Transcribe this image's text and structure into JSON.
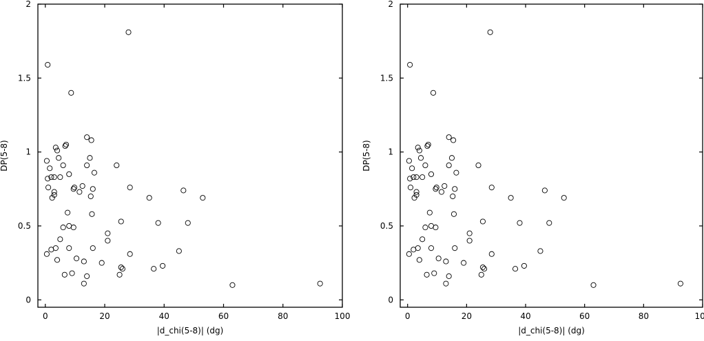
{
  "chart_data": [
    {
      "type": "scatter",
      "xlabel": "|d_chi(5-8)| (dg)",
      "ylabel": "DP(5-8)",
      "xlim": [
        -2.5,
        100
      ],
      "ylim": [
        -0.05,
        2.0
      ],
      "x_ticks": [
        0,
        20,
        40,
        60,
        80,
        100
      ],
      "x_tick_labels": [
        "0",
        "20",
        "40",
        "60",
        "80",
        "100"
      ],
      "y_ticks": [
        0,
        0.5,
        1,
        1.5,
        2
      ],
      "y_tick_labels": [
        "0",
        "0.5",
        "1",
        "1.5",
        "2"
      ],
      "grid": false,
      "legend": "none",
      "series": [
        {
          "points": [
            [
              0.8,
              1.59
            ],
            [
              28,
              1.81
            ],
            [
              8.7,
              1.4
            ],
            [
              0.5,
              0.94
            ],
            [
              0.8,
              0.82
            ],
            [
              1,
              0.76
            ],
            [
              1.5,
              0.89
            ],
            [
              2,
              0.83
            ],
            [
              2.3,
              0.69
            ],
            [
              3,
              0.83
            ],
            [
              3,
              0.73
            ],
            [
              3,
              0.71
            ],
            [
              3.5,
              1.03
            ],
            [
              4,
              1.01
            ],
            [
              4.5,
              0.96
            ],
            [
              5,
              0.83
            ],
            [
              6,
              0.91
            ],
            [
              6.7,
              1.04
            ],
            [
              7,
              1.05
            ],
            [
              8,
              0.85
            ],
            [
              9.5,
              0.75
            ],
            [
              9.8,
              0.76
            ],
            [
              11.5,
              0.73
            ],
            [
              12.5,
              0.77
            ],
            [
              14,
              1.1
            ],
            [
              15.5,
              1.08
            ],
            [
              15,
              0.96
            ],
            [
              14,
              0.91
            ],
            [
              16.5,
              0.86
            ],
            [
              16,
              0.75
            ],
            [
              15.3,
              0.7
            ],
            [
              24,
              0.91
            ],
            [
              28.5,
              0.76
            ],
            [
              35,
              0.69
            ],
            [
              46.5,
              0.74
            ],
            [
              53,
              0.69
            ],
            [
              15.7,
              0.58
            ],
            [
              7.5,
              0.59
            ],
            [
              25.5,
              0.53
            ],
            [
              38,
              0.52
            ],
            [
              48,
              0.52
            ],
            [
              6,
              0.49
            ],
            [
              8,
              0.5
            ],
            [
              9.5,
              0.49
            ],
            [
              21,
              0.45
            ],
            [
              21,
              0.4
            ],
            [
              5,
              0.41
            ],
            [
              0.5,
              0.31
            ],
            [
              2,
              0.34
            ],
            [
              3.5,
              0.35
            ],
            [
              8,
              0.35
            ],
            [
              16,
              0.35
            ],
            [
              28.5,
              0.31
            ],
            [
              45,
              0.33
            ],
            [
              4,
              0.27
            ],
            [
              10.5,
              0.28
            ],
            [
              13,
              0.26
            ],
            [
              19,
              0.25
            ],
            [
              25.5,
              0.22
            ],
            [
              26,
              0.21
            ],
            [
              36.5,
              0.21
            ],
            [
              39.5,
              0.23
            ],
            [
              6.5,
              0.17
            ],
            [
              9,
              0.18
            ],
            [
              14,
              0.16
            ],
            [
              25,
              0.17
            ],
            [
              13,
              0.11
            ],
            [
              63,
              0.1
            ],
            [
              92.5,
              0.11
            ]
          ]
        }
      ]
    },
    {
      "type": "scatter",
      "xlabel": "|d_chi(5-8)| (dg)",
      "ylabel": "DP(5-8)",
      "xlim": [
        -2.5,
        100
      ],
      "ylim": [
        -0.05,
        2.0
      ],
      "x_ticks": [
        0,
        20,
        40,
        60,
        80,
        100
      ],
      "x_tick_labels": [
        "0",
        "20",
        "40",
        "60",
        "80",
        "100"
      ],
      "y_ticks": [
        0,
        0.5,
        1,
        1.5,
        2
      ],
      "y_tick_labels": [
        "0",
        "0.5",
        "1",
        "1.5",
        "2"
      ],
      "grid": false,
      "legend": "none",
      "series": [
        {
          "points": [
            [
              0.8,
              1.59
            ],
            [
              28,
              1.81
            ],
            [
              8.7,
              1.4
            ],
            [
              0.5,
              0.94
            ],
            [
              0.8,
              0.82
            ],
            [
              1,
              0.76
            ],
            [
              1.5,
              0.89
            ],
            [
              2,
              0.83
            ],
            [
              2.3,
              0.69
            ],
            [
              3,
              0.83
            ],
            [
              3,
              0.73
            ],
            [
              3,
              0.71
            ],
            [
              3.5,
              1.03
            ],
            [
              4,
              1.01
            ],
            [
              4.5,
              0.96
            ],
            [
              5,
              0.83
            ],
            [
              6,
              0.91
            ],
            [
              6.7,
              1.04
            ],
            [
              7,
              1.05
            ],
            [
              8,
              0.85
            ],
            [
              9.5,
              0.75
            ],
            [
              9.8,
              0.76
            ],
            [
              11.5,
              0.73
            ],
            [
              12.5,
              0.77
            ],
            [
              14,
              1.1
            ],
            [
              15.5,
              1.08
            ],
            [
              15,
              0.96
            ],
            [
              14,
              0.91
            ],
            [
              16.5,
              0.86
            ],
            [
              16,
              0.75
            ],
            [
              15.3,
              0.7
            ],
            [
              24,
              0.91
            ],
            [
              28.5,
              0.76
            ],
            [
              35,
              0.69
            ],
            [
              46.5,
              0.74
            ],
            [
              53,
              0.69
            ],
            [
              15.7,
              0.58
            ],
            [
              7.5,
              0.59
            ],
            [
              25.5,
              0.53
            ],
            [
              38,
              0.52
            ],
            [
              48,
              0.52
            ],
            [
              6,
              0.49
            ],
            [
              8,
              0.5
            ],
            [
              9.5,
              0.49
            ],
            [
              21,
              0.45
            ],
            [
              21,
              0.4
            ],
            [
              5,
              0.41
            ],
            [
              0.5,
              0.31
            ],
            [
              2,
              0.34
            ],
            [
              3.5,
              0.35
            ],
            [
              8,
              0.35
            ],
            [
              16,
              0.35
            ],
            [
              28.5,
              0.31
            ],
            [
              45,
              0.33
            ],
            [
              4,
              0.27
            ],
            [
              10.5,
              0.28
            ],
            [
              13,
              0.26
            ],
            [
              19,
              0.25
            ],
            [
              25.5,
              0.22
            ],
            [
              26,
              0.21
            ],
            [
              36.5,
              0.21
            ],
            [
              39.5,
              0.23
            ],
            [
              6.5,
              0.17
            ],
            [
              9,
              0.18
            ],
            [
              14,
              0.16
            ],
            [
              25,
              0.17
            ],
            [
              13,
              0.11
            ],
            [
              63,
              0.1
            ],
            [
              92.5,
              0.11
            ]
          ]
        }
      ]
    }
  ]
}
